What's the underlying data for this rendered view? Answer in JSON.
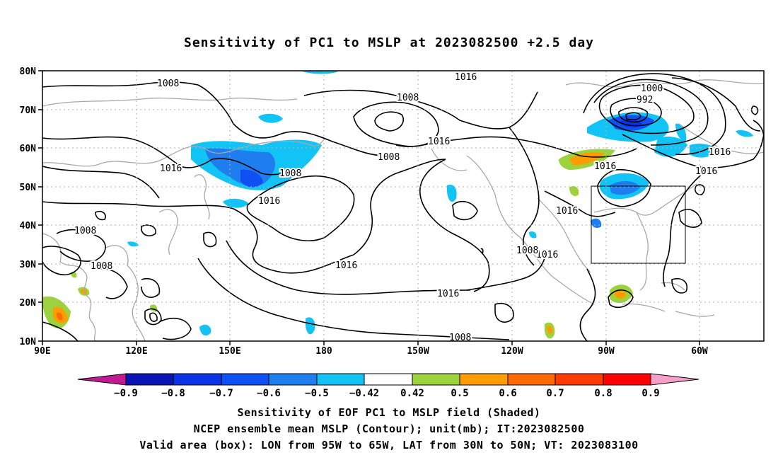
{
  "title": "Sensitivity of PC1 to MSLP at 2023082500 +2.5 day",
  "map": {
    "lat_labels": [
      "80N",
      "70N",
      "60N",
      "50N",
      "40N",
      "30N",
      "20N",
      "10N"
    ],
    "lon_labels": [
      "90E",
      "120E",
      "150E",
      "180",
      "150W",
      "120W",
      "90W",
      "60W"
    ],
    "lon_range_deg": [
      90,
      330
    ],
    "lat_range_deg": [
      10,
      80
    ],
    "valid_box": {
      "lon_from": "95W",
      "lon_to": "65W",
      "lat_from": "30N",
      "lat_to": "50N"
    },
    "contour_labels": [
      "1008",
      "1016",
      "1008",
      "1016",
      "1008",
      "1016",
      "1008",
      "1008",
      "1016",
      "1016",
      "1016",
      "1000",
      "992",
      "1008",
      "1016",
      "1016",
      "1016",
      "1016",
      "1008",
      "1016",
      "1008"
    ],
    "colors": {
      "coastline": "#a8a8a8",
      "contour": "#000000",
      "grid": "#b0b0b0"
    }
  },
  "colorbar": {
    "labels": [
      "−0.9",
      "−0.8",
      "−0.7",
      "−0.6",
      "−0.5",
      "−0.42",
      "0.42",
      "0.5",
      "0.6",
      "0.7",
      "0.8",
      "0.9"
    ],
    "colors": [
      "#c21a93",
      "#0a14b4",
      "#0a32e6",
      "#0f50f5",
      "#1e7ef0",
      "#12c3f5",
      "#ffffff",
      "#9cd23c",
      "#ff9c00",
      "#ff6a00",
      "#ff3a00",
      "#ff0000",
      "#f5a0c8"
    ]
  },
  "footer": {
    "line1": "Sensitivity of EOF PC1 to MSLP field (Shaded)",
    "line2": "NCEP ensemble mean MSLP (Contour); unit(mb); IT:2023082500",
    "line3": "Valid area (box): LON from 95W to 65W, LAT from 30N to 50N; VT: 2023083100"
  }
}
